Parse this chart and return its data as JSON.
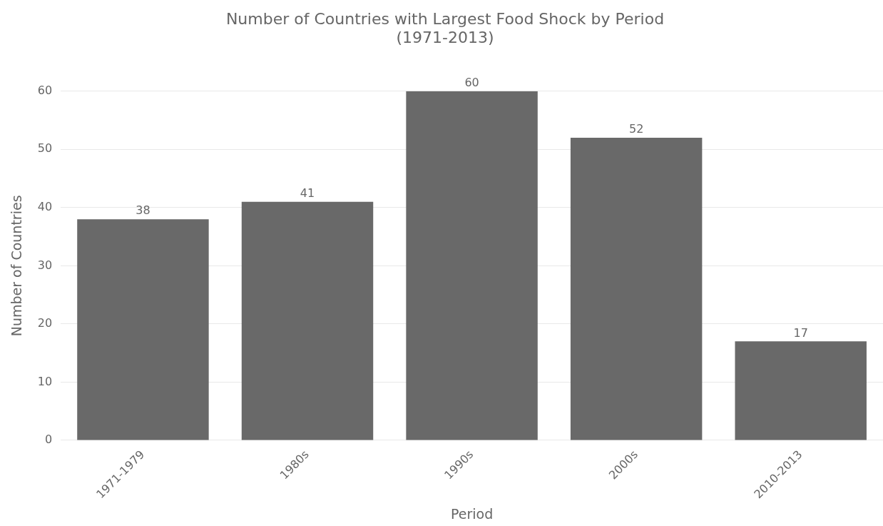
{
  "chart_data": {
    "type": "bar",
    "title": "Number of Countries with Largest Food Shock by Period\n(1971-2013)",
    "xlabel": "Period",
    "ylabel": "Number of Countries",
    "categories": [
      "1971-1979",
      "1980s",
      "1990s",
      "2000s",
      "2010-2013"
    ],
    "values": [
      38,
      41,
      60,
      52,
      17
    ],
    "color": "#696969",
    "ylim": [
      0,
      60
    ],
    "yticks": [
      0,
      10,
      20,
      30,
      40,
      50,
      60
    ],
    "grid": "y",
    "data_labels": true,
    "legend": false
  }
}
